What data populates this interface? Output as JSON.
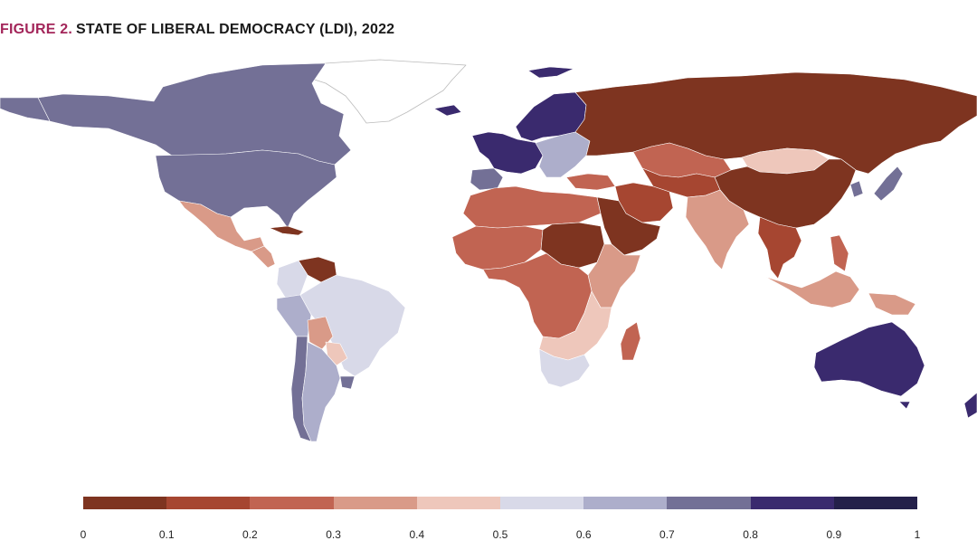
{
  "figure": {
    "number_label": "FIGURE 2.",
    "title": "STATE OF LIBERAL DEMOCRACY (LDI), 2022"
  },
  "legend": {
    "ticks": [
      "0",
      "0.1",
      "0.2",
      "0.3",
      "0.4",
      "0.5",
      "0.6",
      "0.7",
      "0.8",
      "0.9",
      "1"
    ],
    "bins": [
      {
        "range": [
          0.0,
          0.1
        ],
        "color": "#7e3420"
      },
      {
        "range": [
          0.1,
          0.2
        ],
        "color": "#a64631"
      },
      {
        "range": [
          0.2,
          0.3
        ],
        "color": "#c16452"
      },
      {
        "range": [
          0.3,
          0.4
        ],
        "color": "#d99a88"
      },
      {
        "range": [
          0.4,
          0.5
        ],
        "color": "#eec7bb"
      },
      {
        "range": [
          0.5,
          0.6
        ],
        "color": "#d8d9e8"
      },
      {
        "range": [
          0.6,
          0.7
        ],
        "color": "#adaecb"
      },
      {
        "range": [
          0.7,
          0.8
        ],
        "color": "#737096"
      },
      {
        "range": [
          0.8,
          0.9
        ],
        "color": "#3a2a6e"
      },
      {
        "range": [
          0.9,
          1.0
        ],
        "color": "#24204a"
      }
    ],
    "no_data_color": "#ffffff"
  },
  "regions": [
    {
      "name": "Greenland",
      "bin": "none"
    },
    {
      "name": "Canada",
      "bin": 7
    },
    {
      "name": "United States",
      "bin": 7
    },
    {
      "name": "Mexico",
      "bin": 3
    },
    {
      "name": "Central America",
      "bin": 3
    },
    {
      "name": "Cuba",
      "bin": 0
    },
    {
      "name": "Venezuela",
      "bin": 0
    },
    {
      "name": "Brazil",
      "bin": 5
    },
    {
      "name": "Colombia",
      "bin": 5
    },
    {
      "name": "Peru",
      "bin": 6
    },
    {
      "name": "Bolivia",
      "bin": 3
    },
    {
      "name": "Paraguay",
      "bin": 4
    },
    {
      "name": "Argentina",
      "bin": 6
    },
    {
      "name": "Chile",
      "bin": 7
    },
    {
      "name": "Uruguay",
      "bin": 7
    },
    {
      "name": "Iceland",
      "bin": 8
    },
    {
      "name": "Scandinavia",
      "bin": 8
    },
    {
      "name": "Western Europe",
      "bin": 8
    },
    {
      "name": "Iberia",
      "bin": 7
    },
    {
      "name": "Eastern Europe",
      "bin": 6
    },
    {
      "name": "Russia",
      "bin": 0
    },
    {
      "name": "Kazakhstan",
      "bin": 2
    },
    {
      "name": "Mongolia",
      "bin": 4
    },
    {
      "name": "China",
      "bin": 0
    },
    {
      "name": "Japan",
      "bin": 7
    },
    {
      "name": "South Korea",
      "bin": 7
    },
    {
      "name": "North Africa",
      "bin": 2
    },
    {
      "name": "Sahel",
      "bin": 2
    },
    {
      "name": "Sudan",
      "bin": 0
    },
    {
      "name": "Arabian Peninsula",
      "bin": 0
    },
    {
      "name": "Iran",
      "bin": 1
    },
    {
      "name": "Turkey",
      "bin": 2
    },
    {
      "name": "Central Asia",
      "bin": 1
    },
    {
      "name": "India",
      "bin": 3
    },
    {
      "name": "Southeast Asia",
      "bin": 1
    },
    {
      "name": "Indonesia",
      "bin": 3
    },
    {
      "name": "Central Africa",
      "bin": 2
    },
    {
      "name": "East Africa",
      "bin": 3
    },
    {
      "name": "Southern Africa",
      "bin": 4
    },
    {
      "name": "South Africa",
      "bin": 5
    },
    {
      "name": "Madagascar",
      "bin": 2
    },
    {
      "name": "Philippines",
      "bin": 2
    },
    {
      "name": "Papua New Guinea",
      "bin": 3
    },
    {
      "name": "Australia",
      "bin": 8
    },
    {
      "name": "New Zealand",
      "bin": 8
    }
  ]
}
